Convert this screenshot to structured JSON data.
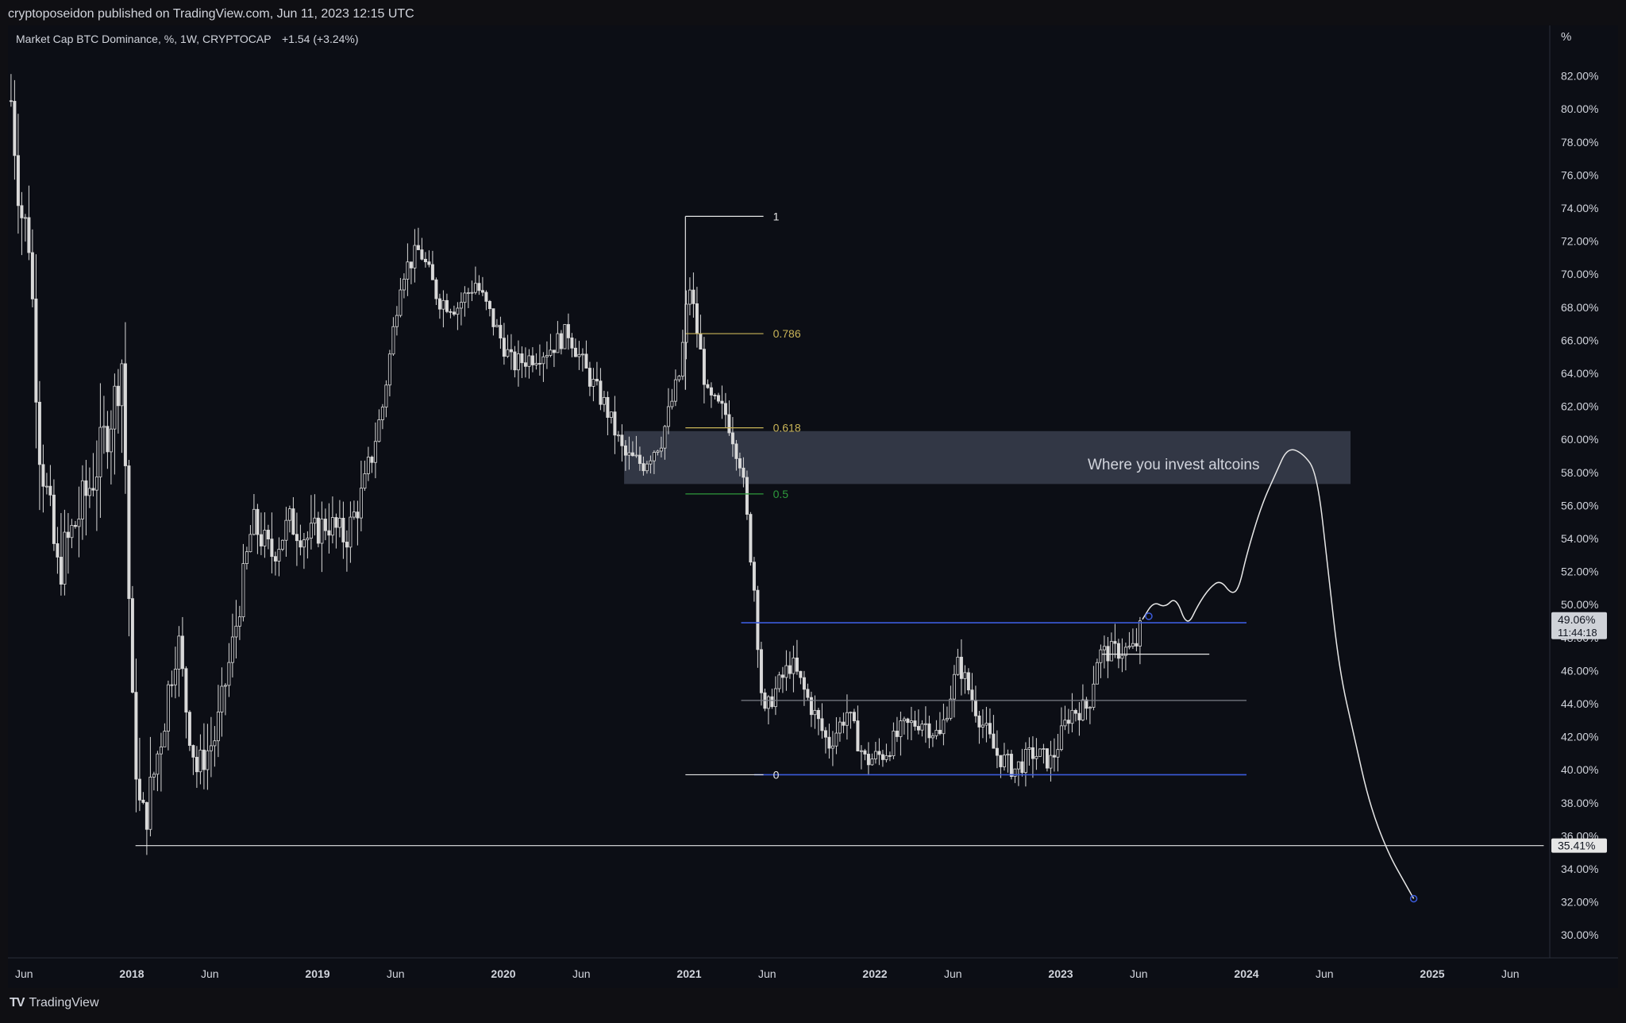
{
  "header": {
    "publisher": "cryptoposeidon published on TradingView.com, Jun 11, 2023 12:15 UTC"
  },
  "legend": {
    "symbol": "Market Cap BTC Dominance, %, 1W, CRYPTOCAP",
    "change": "+1.54 (+3.24%)"
  },
  "footer": {
    "logo": "TV",
    "brand": "TradingView"
  },
  "colors": {
    "background": "#0c0e15",
    "candle": "#d9d9d9",
    "fib_yellow": "#c9b458",
    "fib_green": "#2e9a3c",
    "blue_line": "#3b5bdb",
    "zone": "#3a3e4e"
  },
  "chart_data": {
    "type": "candlestick",
    "title": "Market Cap BTC Dominance, %, 1W, CRYPTOCAP",
    "y_unit": "%",
    "ylim": [
      29.0,
      84.0
    ],
    "y_ticks": [
      "82.00%",
      "80.00%",
      "78.00%",
      "76.00%",
      "74.00%",
      "72.00%",
      "70.00%",
      "68.00%",
      "66.00%",
      "64.00%",
      "62.00%",
      "60.00%",
      "58.00%",
      "56.00%",
      "54.00%",
      "52.00%",
      "50.00%",
      "48.00%",
      "46.00%",
      "44.00%",
      "42.00%",
      "40.00%",
      "38.00%",
      "36.00%",
      "34.00%",
      "32.00%",
      "30.00%"
    ],
    "x_ticks": [
      {
        "label": "Jun",
        "t": 2017.42,
        "bold": false
      },
      {
        "label": "2018",
        "t": 2018.0,
        "bold": true
      },
      {
        "label": "Jun",
        "t": 2018.42,
        "bold": false
      },
      {
        "label": "2019",
        "t": 2019.0,
        "bold": true
      },
      {
        "label": "Jun",
        "t": 2019.42,
        "bold": false
      },
      {
        "label": "2020",
        "t": 2020.0,
        "bold": true
      },
      {
        "label": "Jun",
        "t": 2020.42,
        "bold": false
      },
      {
        "label": "2021",
        "t": 2021.0,
        "bold": true
      },
      {
        "label": "Jun",
        "t": 2021.42,
        "bold": false
      },
      {
        "label": "2022",
        "t": 2022.0,
        "bold": true
      },
      {
        "label": "Jun",
        "t": 2022.42,
        "bold": false
      },
      {
        "label": "2023",
        "t": 2023.0,
        "bold": true
      },
      {
        "label": "Jun",
        "t": 2023.42,
        "bold": false
      },
      {
        "label": "2024",
        "t": 2024.0,
        "bold": true
      },
      {
        "label": "Jun",
        "t": 2024.42,
        "bold": false
      },
      {
        "label": "2025",
        "t": 2025.0,
        "bold": true
      },
      {
        "label": "Jun",
        "t": 2025.42,
        "bold": false
      }
    ],
    "price_path": [
      [
        2017.35,
        80.5
      ],
      [
        2017.4,
        74.0
      ],
      [
        2017.45,
        72.0
      ],
      [
        2017.5,
        60.0
      ],
      [
        2017.6,
        52.0
      ],
      [
        2017.7,
        55.0
      ],
      [
        2017.8,
        58.0
      ],
      [
        2017.9,
        62.0
      ],
      [
        2017.95,
        65.0
      ],
      [
        2018.0,
        44.0
      ],
      [
        2018.05,
        36.5
      ],
      [
        2018.1,
        38.5
      ],
      [
        2018.2,
        45.0
      ],
      [
        2018.25,
        48.0
      ],
      [
        2018.3,
        43.0
      ],
      [
        2018.35,
        40.0
      ],
      [
        2018.45,
        42.0
      ],
      [
        2018.55,
        48.0
      ],
      [
        2018.65,
        55.0
      ],
      [
        2018.75,
        53.0
      ],
      [
        2018.85,
        55.0
      ],
      [
        2018.95,
        54.0
      ],
      [
        2019.05,
        55.0
      ],
      [
        2019.15,
        54.0
      ],
      [
        2019.25,
        57.0
      ],
      [
        2019.35,
        62.0
      ],
      [
        2019.45,
        70.0
      ],
      [
        2019.55,
        71.5
      ],
      [
        2019.65,
        68.5
      ],
      [
        2019.75,
        68.0
      ],
      [
        2019.85,
        69.5
      ],
      [
        2019.95,
        67.0
      ],
      [
        2020.05,
        64.5
      ],
      [
        2020.15,
        65.0
      ],
      [
        2020.25,
        65.5
      ],
      [
        2020.35,
        66.5
      ],
      [
        2020.45,
        64.0
      ],
      [
        2020.55,
        62.0
      ],
      [
        2020.65,
        59.0
      ],
      [
        2020.75,
        58.5
      ],
      [
        2020.85,
        60.0
      ],
      [
        2020.95,
        64.0
      ],
      [
        2021.0,
        69.5
      ],
      [
        2021.05,
        66.0
      ],
      [
        2021.1,
        62.5
      ],
      [
        2021.2,
        61.5
      ],
      [
        2021.28,
        58.5
      ],
      [
        2021.35,
        51.0
      ],
      [
        2021.4,
        43.0
      ],
      [
        2021.45,
        44.5
      ],
      [
        2021.55,
        46.5
      ],
      [
        2021.65,
        44.0
      ],
      [
        2021.75,
        41.5
      ],
      [
        2021.85,
        43.5
      ],
      [
        2021.95,
        40.5
      ],
      [
        2022.05,
        41.0
      ],
      [
        2022.15,
        42.5
      ],
      [
        2022.25,
        43.0
      ],
      [
        2022.35,
        42.0
      ],
      [
        2022.45,
        46.5
      ],
      [
        2022.55,
        43.5
      ],
      [
        2022.65,
        41.0
      ],
      [
        2022.75,
        40.0
      ],
      [
        2022.85,
        41.0
      ],
      [
        2022.95,
        40.5
      ],
      [
        2023.05,
        43.5
      ],
      [
        2023.15,
        43.8
      ],
      [
        2023.2,
        47.0
      ],
      [
        2023.3,
        47.2
      ],
      [
        2023.4,
        47.3
      ],
      [
        2023.44,
        49.06
      ]
    ],
    "ath_marker": 73.5,
    "fibonacci": [
      {
        "label": "1",
        "value": 73.5,
        "color": "white"
      },
      {
        "label": "0.786",
        "value": 66.4,
        "color": "yellow"
      },
      {
        "label": "0.618",
        "value": 60.7,
        "color": "yellow"
      },
      {
        "label": "0.5",
        "value": 56.7,
        "color": "green"
      },
      {
        "label": "0",
        "value": 39.7,
        "color": "white"
      }
    ],
    "zone": {
      "top": 60.5,
      "bottom": 57.3,
      "x_start": 2020.65,
      "x_end": 2024.56
    },
    "annotation": "Where you invest altcoins",
    "horizontal_levels": [
      {
        "value": 48.9,
        "kind": "blue",
        "x_start": 2021.28,
        "x_end": 2024.0
      },
      {
        "value": 39.7,
        "kind": "blue",
        "x_start": 2021.35,
        "x_end": 2024.0
      },
      {
        "value": 44.2,
        "kind": "gray",
        "x_start": 2021.28,
        "x_end": 2024.0
      },
      {
        "value": 47.0,
        "kind": "white",
        "x_start": 2023.22,
        "x_end": 2023.8
      },
      {
        "value": 35.41,
        "kind": "white",
        "x_start": 2018.02,
        "x_end": 2025.6
      }
    ],
    "projection": [
      [
        2023.44,
        49.1
      ],
      [
        2023.5,
        50.2
      ],
      [
        2023.56,
        49.8
      ],
      [
        2023.62,
        50.5
      ],
      [
        2023.68,
        48.6
      ],
      [
        2023.74,
        50.0
      ],
      [
        2023.8,
        51.0
      ],
      [
        2023.86,
        51.5
      ],
      [
        2023.92,
        50.6
      ],
      [
        2023.96,
        51.0
      ],
      [
        2024.0,
        53.0
      ],
      [
        2024.08,
        56.0
      ],
      [
        2024.16,
        58.0
      ],
      [
        2024.22,
        59.5
      ],
      [
        2024.3,
        59.2
      ],
      [
        2024.38,
        58.0
      ],
      [
        2024.44,
        52.0
      ],
      [
        2024.5,
        46.0
      ],
      [
        2024.58,
        42.0
      ],
      [
        2024.66,
        38.0
      ],
      [
        2024.76,
        35.0
      ],
      [
        2024.86,
        33.0
      ],
      [
        2024.9,
        32.2
      ]
    ],
    "price_labels": [
      {
        "text": "49.06%",
        "sub": "11:44:18",
        "value": 49.06
      },
      {
        "text": "35.41%",
        "value": 35.41
      }
    ]
  }
}
